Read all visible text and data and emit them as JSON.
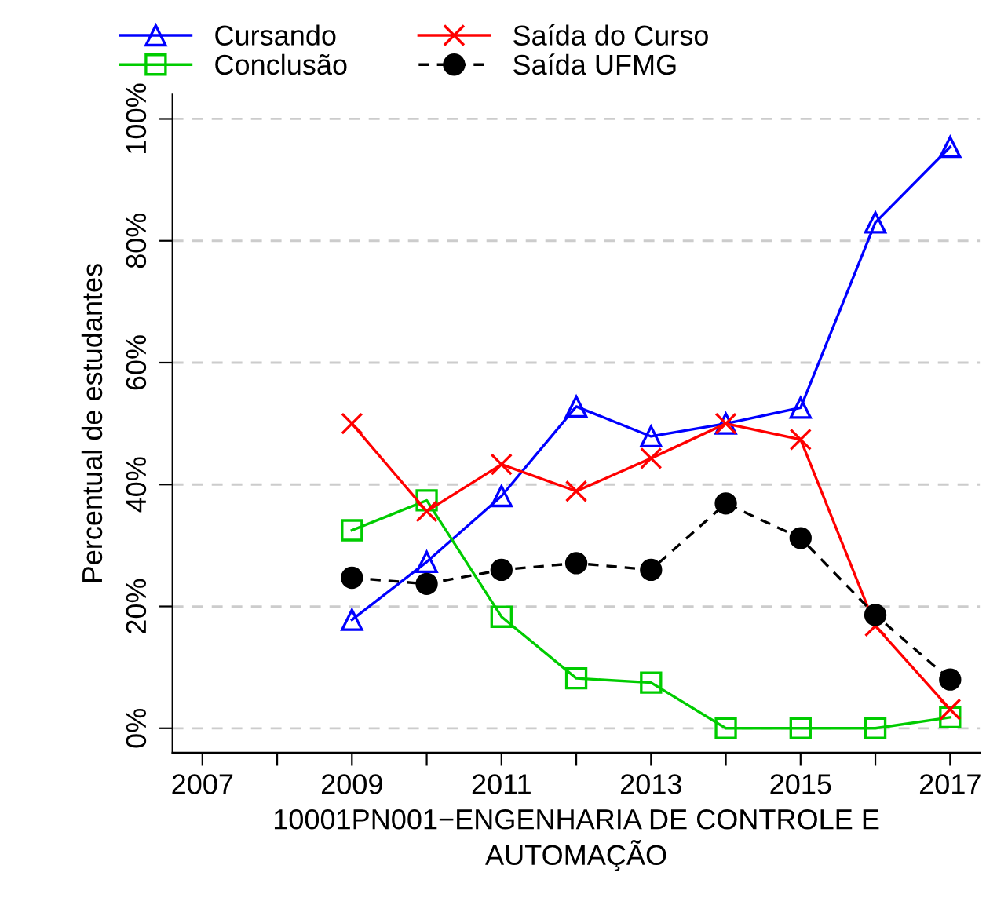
{
  "chart_data": {
    "type": "line",
    "xlabel": "10001PN001−ENGENHARIA DE CONTROLE E\nAUTOMAÇÃO",
    "ylabel": "Percentual de estudantes",
    "x": [
      2009,
      2010,
      2011,
      2012,
      2013,
      2014,
      2015,
      2016,
      2017
    ],
    "series": [
      {
        "name": "Cursando",
        "color": "#0000ff",
        "marker": "triangle",
        "line_style": "solid",
        "values": [
          17.8,
          27.3,
          38.1,
          52.8,
          47.9,
          50,
          52.6,
          83,
          95.4
        ]
      },
      {
        "name": "Conclusão",
        "color": "#00cc00",
        "marker": "square",
        "line_style": "solid",
        "values": [
          32.5,
          37.4,
          18.3,
          8.2,
          7.5,
          0,
          0,
          0,
          1.8
        ]
      },
      {
        "name": "Saída do Curso",
        "color": "#ff0000",
        "marker": "cross",
        "line_style": "solid",
        "values": [
          50,
          35.6,
          43.3,
          38.9,
          44.3,
          50,
          47.4,
          16.8,
          3.1
        ]
      },
      {
        "name": "Saída UFMG",
        "color": "#000000",
        "marker": "circle",
        "line_style": "dashed",
        "values": [
          24.7,
          23.7,
          26,
          27.1,
          26,
          36.9,
          31.2,
          18.6,
          8
        ]
      }
    ],
    "xlim": [
      2006.6,
      2017.4
    ],
    "xticks": [
      2007,
      {
        "value": 2008,
        "label": null
      },
      2009,
      {
        "value": 2010,
        "label": null
      },
      2011,
      {
        "value": 2012,
        "label": null
      },
      2013,
      {
        "value": 2014,
        "label": null
      },
      2015,
      {
        "value": 2016,
        "label": null
      },
      2017
    ],
    "ylim": [
      -4,
      104
    ],
    "yticks": [
      {
        "value": 0,
        "label": "0%"
      },
      {
        "value": 20,
        "label": "20%"
      },
      {
        "value": 40,
        "label": "40%"
      },
      {
        "value": 60,
        "label": "60%"
      },
      {
        "value": 80,
        "label": "80%"
      },
      {
        "value": 100,
        "label": "100%"
      }
    ],
    "grid": "y",
    "legend": "top"
  }
}
